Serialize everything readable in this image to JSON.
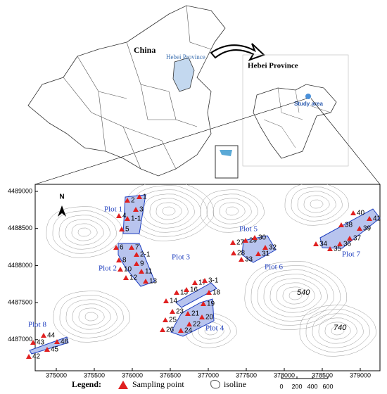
{
  "top": {
    "china_label": "China",
    "hebei_label_map": "Hebei Province",
    "inset_title": "Hebei Province",
    "study_area": "Study area"
  },
  "map": {
    "north": "N",
    "x_ticks": [
      "375000",
      "375500",
      "376000",
      "376500",
      "377000",
      "377500",
      "378000",
      "378500",
      "379000"
    ],
    "y_ticks": [
      "4489000",
      "4488500",
      "4488000",
      "4487500",
      "4487000"
    ],
    "plots": [
      "Plot 1",
      "Plot 2",
      "Plot 3",
      "Plot 4",
      "Plot 5",
      "Plot 6",
      "Plot 7",
      "Plot 8"
    ],
    "points": [
      "1",
      "2",
      "3",
      "4",
      "1-1",
      "5",
      "6",
      "7",
      "2-1",
      "8",
      "9",
      "10",
      "11",
      "12",
      "13",
      "14",
      "15",
      "16",
      "17",
      "3-1",
      "18",
      "19",
      "20",
      "21",
      "22",
      "23",
      "24",
      "25",
      "26",
      "27",
      "28",
      "29",
      "30",
      "31",
      "32",
      "33",
      "34",
      "35",
      "36",
      "37",
      "38",
      "39",
      "40",
      "41",
      "42",
      "43",
      "44",
      "45",
      "46"
    ],
    "isolines": [
      "540",
      "740"
    ]
  },
  "legend": {
    "title": "Legend:",
    "sampling": "Sampling point",
    "isoline": "isoline",
    "scale": [
      "0",
      "200",
      "400",
      "600"
    ]
  }
}
